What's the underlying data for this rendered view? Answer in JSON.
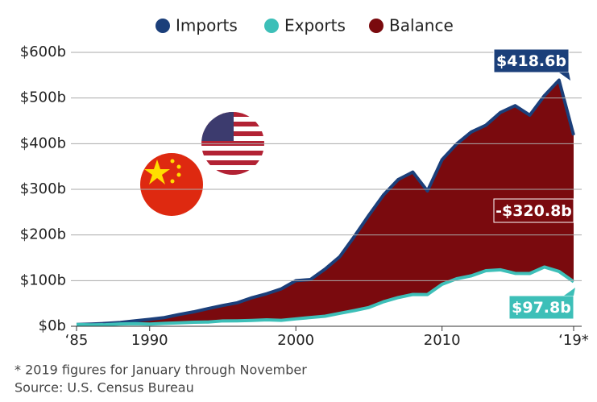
{
  "chart_data": {
    "type": "line",
    "x": [
      1985,
      1986,
      1987,
      1988,
      1989,
      1990,
      1991,
      1992,
      1993,
      1994,
      1995,
      1996,
      1997,
      1998,
      1999,
      2000,
      2001,
      2002,
      2003,
      2004,
      2005,
      2006,
      2007,
      2008,
      2009,
      2010,
      2011,
      2012,
      2013,
      2014,
      2015,
      2016,
      2017,
      2018,
      2019
    ],
    "series": [
      {
        "name": "Imports",
        "color": "#1b3f7a",
        "end_label": "$418.6b",
        "values": [
          3.9,
          4.8,
          6.3,
          8.5,
          12,
          15.2,
          19,
          25.7,
          31.5,
          38.8,
          45.5,
          51.5,
          62.6,
          71.2,
          81.8,
          100,
          102.3,
          125.2,
          152.4,
          196.7,
          243.5,
          287.8,
          321.4,
          337.8,
          296.4,
          364.9,
          399.4,
          425.6,
          440.4,
          468.5,
          483.2,
          462.4,
          505.2,
          539.2,
          418.6
        ]
      },
      {
        "name": "Exports",
        "color": "#3dbfb8",
        "end_label": "$97.8b",
        "values": [
          3.9,
          3.1,
          3.5,
          5.0,
          5.8,
          4.8,
          6.3,
          7.4,
          8.8,
          9.3,
          11.8,
          12.0,
          12.9,
          14.2,
          13.1,
          16.2,
          19.2,
          22.1,
          28.4,
          34.4,
          41.2,
          53.7,
          62.9,
          69.7,
          69.5,
          91.9,
          104.1,
          110.5,
          121.7,
          123.7,
          115.9,
          115.6,
          129.8,
          120.1,
          97.8
        ]
      },
      {
        "name": "Balance",
        "color": "#7a0a0e",
        "end_label": "-$320.8b"
      }
    ],
    "xlim": [
      1985,
      2019
    ],
    "xticks": [
      {
        "value": 1985,
        "label": "‘85"
      },
      1990,
      2000,
      2010,
      {
        "value": 2019,
        "label": "‘19*"
      }
    ],
    "ylim": [
      0,
      600
    ],
    "yticks": [
      {
        "value": 0,
        "label": "$0b"
      },
      {
        "value": 100,
        "label": "$100b"
      },
      {
        "value": 200,
        "label": "$200b"
      },
      {
        "value": 300,
        "label": "$300b"
      },
      {
        "value": 400,
        "label": "$400b"
      },
      {
        "value": 500,
        "label": "$500b"
      },
      {
        "value": 600,
        "label": "$600b"
      }
    ],
    "grid": true,
    "footnote": "* 2019 figures for January through November",
    "source": "Source: U.S. Census Bureau"
  }
}
